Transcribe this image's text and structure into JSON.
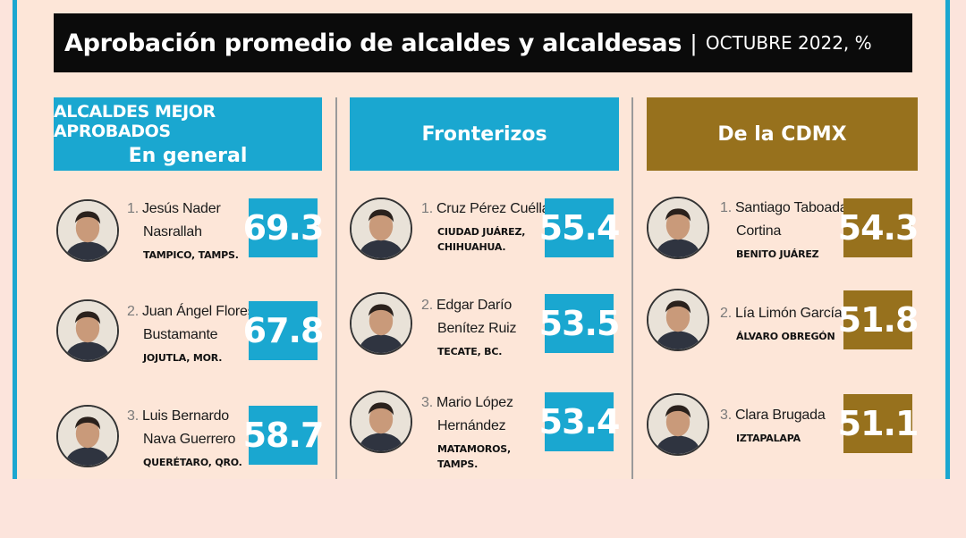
{
  "title": {
    "main": "Aprobación promedio de alcaldes y alcaldesas",
    "separator": "|",
    "sub": "OCTUBRE 2022, %"
  },
  "colors": {
    "blue": "#1aa7d0",
    "gold": "#97711d",
    "black": "#0b0b0b"
  },
  "columns": [
    {
      "header_line1": "ALCALDES MEJOR APROBADOS",
      "header_line2": "En general",
      "accent": "#1aa7d0",
      "entries": [
        {
          "rank": "1.",
          "name_lines": [
            "Jesús Nader",
            "Nasrallah"
          ],
          "location_lines": [
            "TAMPICO, TAMPS."
          ],
          "score": "69.3",
          "avatar_icon": "person-photo-icon"
        },
        {
          "rank": "2.",
          "name_lines": [
            "Juan Ángel Flores",
            "Bustamante"
          ],
          "location_lines": [
            "JOJUTLA, MOR."
          ],
          "score": "67.8",
          "avatar_icon": "person-photo-icon"
        },
        {
          "rank": "3.",
          "name_lines": [
            "Luis Bernardo",
            "Nava Guerrero"
          ],
          "location_lines": [
            "QUERÉTARO, QRO."
          ],
          "score": "58.7",
          "avatar_icon": "person-photo-icon"
        }
      ]
    },
    {
      "header": "Fronterizos",
      "accent": "#1aa7d0",
      "entries": [
        {
          "rank": "1.",
          "name_lines": [
            "Cruz Pérez Cuéllar"
          ],
          "location_lines": [
            "CIUDAD JUÁREZ,",
            "CHIHUAHUA."
          ],
          "score": "55.4",
          "avatar_icon": "person-photo-icon"
        },
        {
          "rank": "2.",
          "name_lines": [
            "Edgar Darío",
            "Benítez Ruiz"
          ],
          "location_lines": [
            "TECATE, BC."
          ],
          "score": "53.5",
          "avatar_icon": "person-photo-icon"
        },
        {
          "rank": "3.",
          "name_lines": [
            "Mario López",
            "Hernández"
          ],
          "location_lines": [
            "MATAMOROS,",
            "TAMPS."
          ],
          "score": "53.4",
          "avatar_icon": "person-photo-icon"
        }
      ]
    },
    {
      "header": "De la CDMX",
      "accent": "#97711d",
      "entries": [
        {
          "rank": "1.",
          "name_lines": [
            "Santiago Taboada",
            "Cortina"
          ],
          "location_lines": [
            "BENITO JUÁREZ"
          ],
          "score": "54.3",
          "avatar_icon": "person-photo-icon"
        },
        {
          "rank": "2.",
          "name_lines": [
            "Lía Limón García"
          ],
          "location_lines": [
            "ÁLVARO OBREGÓN"
          ],
          "score": "51.8",
          "avatar_icon": "person-photo-icon"
        },
        {
          "rank": "3.",
          "name_lines": [
            "Clara Brugada"
          ],
          "location_lines": [
            "IZTAPALAPA"
          ],
          "score": "51.1",
          "avatar_icon": "person-photo-icon"
        }
      ]
    }
  ]
}
